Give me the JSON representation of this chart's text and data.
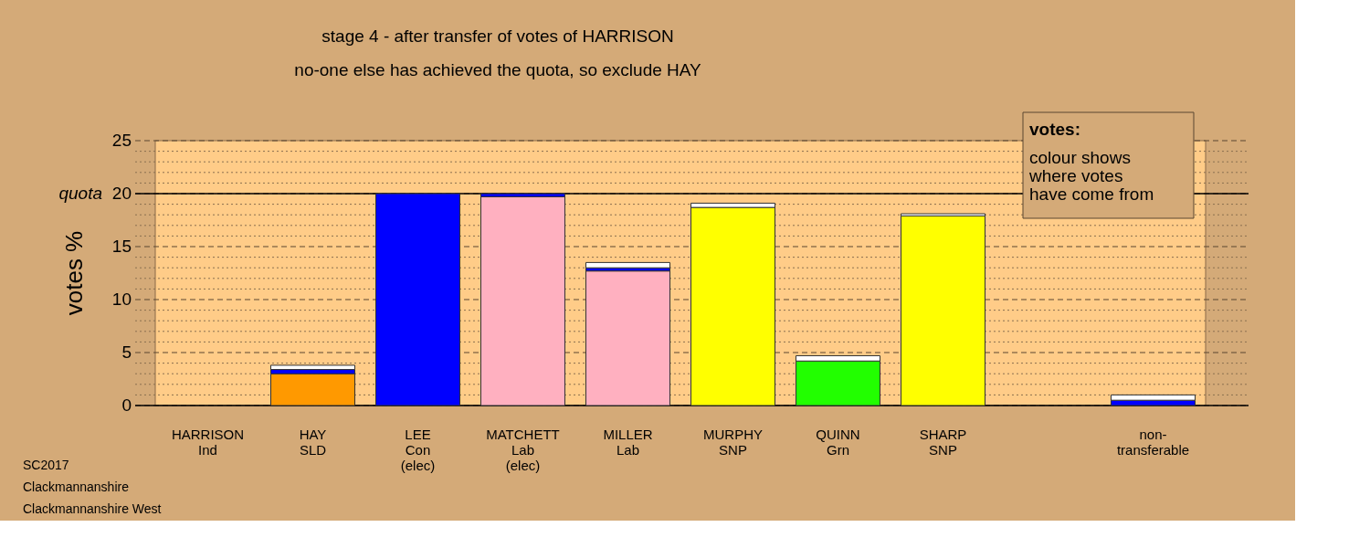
{
  "chart_data": {
    "type": "bar",
    "stacked": true,
    "title": "stage 4 - after transfer of votes of HARRISON",
    "subtitle": "no-one else has achieved the quota, so exclude HAY",
    "ylabel": "votes %",
    "categories": [
      "HARRISON\nInd",
      "HAY\nSLD",
      "LEE\nCon\n(elec)",
      "MATCHETT\nLab\n(elec)",
      "MILLER\nLab",
      "MURPHY\nSNP",
      "QUINN\nGrn",
      "SHARP\nSNP",
      null,
      "non-\ntransferable"
    ],
    "series": [
      {
        "colors": [
          null,
          "#ff9900",
          "#0000ff",
          "#ffb0c0",
          "#ffb0c0",
          "#ffff00",
          "#22ff00",
          "#ffff00",
          null,
          null
        ],
        "values": [
          null,
          3.0,
          20,
          19.7,
          12.7,
          18.7,
          4.2,
          17.9,
          null,
          null
        ]
      },
      {
        "color": "#0000ff",
        "values": [
          null,
          0.4,
          null,
          0.3,
          0.3,
          null,
          null,
          null,
          null,
          0.5
        ]
      },
      {
        "color": "#ffffff",
        "values": [
          null,
          0.4,
          null,
          null,
          0.5,
          0.4,
          0.5,
          0.2,
          null,
          0.5
        ]
      }
    ],
    "ylim": [
      0,
      25
    ],
    "yticks": [
      0,
      {
        "value": 1,
        "label": null
      },
      {
        "value": 2,
        "label": null
      },
      {
        "value": 3,
        "label": null
      },
      {
        "value": 4,
        "label": null
      },
      5,
      {
        "value": 6,
        "label": null
      },
      {
        "value": 7,
        "label": null
      },
      {
        "value": 8,
        "label": null
      },
      {
        "value": 9,
        "label": null
      },
      10,
      {
        "value": 11,
        "label": null
      },
      {
        "value": 12,
        "label": null
      },
      {
        "value": 13,
        "label": null
      },
      {
        "value": 14,
        "label": null
      },
      15,
      {
        "value": 16,
        "label": null
      },
      {
        "value": 17,
        "label": null
      },
      {
        "value": 18,
        "label": null
      },
      {
        "value": 19,
        "label": null
      },
      20,
      {
        "value": 21,
        "label": null
      },
      {
        "value": 22,
        "label": null
      },
      {
        "value": 23,
        "label": null
      },
      {
        "value": 24,
        "label": null
      },
      25
    ],
    "grid": true,
    "ref_lines": [
      {
        "axis": "y",
        "value": 20,
        "label": "quota",
        "color": "#000000",
        "line_style": "solid"
      }
    ],
    "annotations": [
      "votes:",
      "colour shows\nwhere votes\nhave come from",
      "SC2017",
      "Clackmannanshire",
      "Clackmannanshire West"
    ]
  }
}
